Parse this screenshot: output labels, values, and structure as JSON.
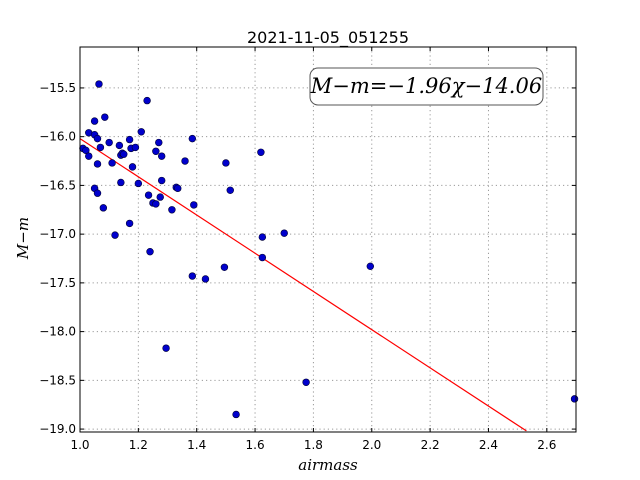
{
  "chart_data": {
    "type": "scatter",
    "title": "2021-11-05_051255",
    "xlabel": "airmass",
    "ylabel": "M−m",
    "xlim": [
      1.0,
      2.7
    ],
    "ylim": [
      -19.03,
      -15.08
    ],
    "x_ticks": [
      1.0,
      1.2,
      1.4,
      1.6,
      1.8,
      2.0,
      2.2,
      2.4,
      2.6
    ],
    "x_tick_labels": [
      "1.0",
      "1.2",
      "1.4",
      "1.6",
      "1.8",
      "2.0",
      "2.2",
      "2.4",
      "2.6"
    ],
    "y_ticks": [
      -15.5,
      -16.0,
      -16.5,
      -17.0,
      -17.5,
      -18.0,
      -18.5,
      -19.0
    ],
    "y_tick_labels": [
      "−15.5",
      "−16.0",
      "−16.5",
      "−17.0",
      "−17.5",
      "−18.0",
      "−18.5",
      "−19.0"
    ],
    "grid": true,
    "annotation": "M−m=−1.96χ−14.06",
    "annotation_position": "top-right",
    "point_color": "#0000cc",
    "fit_color": "#ff0000",
    "fit": {
      "slope": -1.96,
      "intercept": -14.06,
      "x_range": [
        1.0,
        2.53
      ]
    },
    "points": [
      [
        1.01,
        -16.12
      ],
      [
        1.02,
        -16.14
      ],
      [
        1.03,
        -15.96
      ],
      [
        1.03,
        -16.2
      ],
      [
        1.05,
        -15.84
      ],
      [
        1.05,
        -15.98
      ],
      [
        1.05,
        -16.53
      ],
      [
        1.06,
        -16.02
      ],
      [
        1.06,
        -16.28
      ],
      [
        1.06,
        -16.58
      ],
      [
        1.065,
        -15.46
      ],
      [
        1.07,
        -16.11
      ],
      [
        1.08,
        -16.73
      ],
      [
        1.085,
        -15.8
      ],
      [
        1.1,
        -16.06
      ],
      [
        1.11,
        -16.27
      ],
      [
        1.12,
        -17.01
      ],
      [
        1.135,
        -16.09
      ],
      [
        1.14,
        -16.19
      ],
      [
        1.14,
        -16.47
      ],
      [
        1.145,
        -16.17
      ],
      [
        1.15,
        -16.18
      ],
      [
        1.17,
        -16.03
      ],
      [
        1.17,
        -16.89
      ],
      [
        1.175,
        -16.12
      ],
      [
        1.18,
        -16.31
      ],
      [
        1.19,
        -16.11
      ],
      [
        1.2,
        -16.48
      ],
      [
        1.21,
        -15.95
      ],
      [
        1.23,
        -15.63
      ],
      [
        1.235,
        -16.6
      ],
      [
        1.24,
        -17.18
      ],
      [
        1.25,
        -16.68
      ],
      [
        1.26,
        -16.69
      ],
      [
        1.26,
        -16.15
      ],
      [
        1.27,
        -16.06
      ],
      [
        1.275,
        -16.62
      ],
      [
        1.28,
        -16.45
      ],
      [
        1.28,
        -16.2
      ],
      [
        1.295,
        -18.17
      ],
      [
        1.315,
        -16.75
      ],
      [
        1.33,
        -16.52
      ],
      [
        1.335,
        -16.53
      ],
      [
        1.36,
        -16.25
      ],
      [
        1.385,
        -16.02
      ],
      [
        1.385,
        -17.43
      ],
      [
        1.39,
        -16.7
      ],
      [
        1.43,
        -17.46
      ],
      [
        1.495,
        -17.34
      ],
      [
        1.5,
        -16.27
      ],
      [
        1.515,
        -16.55
      ],
      [
        1.535,
        -18.85
      ],
      [
        1.62,
        -16.16
      ],
      [
        1.625,
        -17.03
      ],
      [
        1.625,
        -17.24
      ],
      [
        1.7,
        -16.99
      ],
      [
        1.775,
        -18.52
      ],
      [
        1.995,
        -17.33
      ],
      [
        2.695,
        -18.69
      ]
    ]
  }
}
